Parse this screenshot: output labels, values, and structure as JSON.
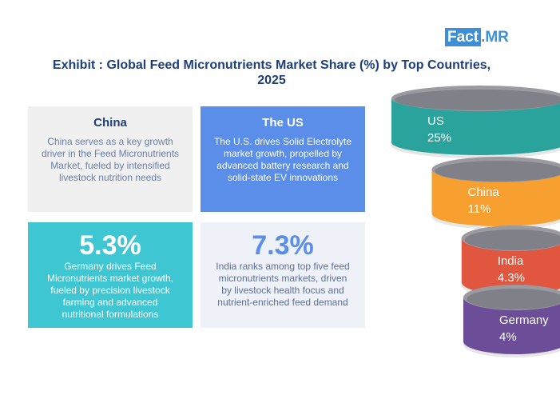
{
  "logo": {
    "box": "Fact",
    "rest": ".MR"
  },
  "chart_data": {
    "type": "stacked-disks",
    "title": "Exhibit : Global Feed Micronutrients Market Share (%) by Top Countries, 2025",
    "categories": [
      "US",
      "China",
      "India",
      "Germany"
    ],
    "values": [
      25,
      11,
      4.3,
      4
    ],
    "value_labels": [
      "25%",
      "11%",
      "4.3%",
      "4%"
    ],
    "colors": [
      "#2aa39c",
      "#f7a02f",
      "#e0563f",
      "#6b4e97"
    ]
  },
  "cards": [
    {
      "title": "China",
      "text": "China serves as a key growth driver in the Feed Micronutrients Market, fueled by intensified livestock nutrition needs"
    },
    {
      "title": "The US",
      "text": "The U.S. drives Solid Electrolyte market growth, propelled by advanced battery research and solid-state EV innovations"
    },
    {
      "title": "5.3%",
      "text": "Germany drives Feed Micronutrients market growth, fueled by precision livestock farming and advanced nutritional formulations"
    },
    {
      "title": "7.3%",
      "text": "India ranks among top five feed micronutrients markets, driven by livestock health focus and nutrient-enriched feed demand"
    }
  ]
}
